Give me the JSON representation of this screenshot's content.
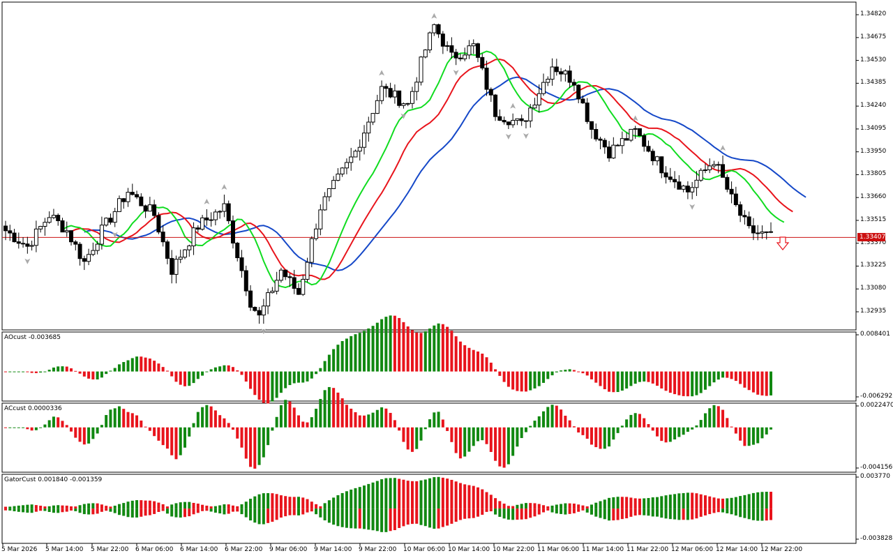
{
  "chart_data": [
    {
      "type": "candlestick",
      "panel": "price",
      "ylim": [
        1.3282,
        1.349
      ],
      "price_axis_ticks": [
        "1.34820",
        "1.34675",
        "1.34530",
        "1.34385",
        "1.34240",
        "1.34095",
        "1.33950",
        "1.33805",
        "1.33660",
        "1.33515",
        "1.33370",
        "1.33225",
        "1.33080",
        "1.32935"
      ],
      "current_price_label": "1.33407",
      "current_price": 1.33407,
      "time_labels": [
        "5 Mar 2026",
        "5 Mar 14:00",
        "5 Mar 22:00",
        "6 Mar 06:00",
        "6 Mar 14:00",
        "6 Mar 22:00",
        "9 Mar 06:00",
        "9 Mar 14:00",
        "9 Mar 22:00",
        "10 Mar 06:00",
        "10 Mar 14:00",
        "10 Mar 22:00",
        "11 Mar 06:00",
        "11 Mar 14:00",
        "11 Mar 22:00",
        "12 Mar 06:00",
        "12 Mar 14:00",
        "12 Mar 22:00"
      ],
      "series": [
        {
          "name": "",
          "line_color": "#1548c8",
          "role": "jaw"
        },
        {
          "name": "",
          "line_color": "#e8141c",
          "role": "teeth"
        },
        {
          "name": "",
          "line_color": "#10dc20",
          "role": "lips"
        }
      ],
      "signal_arrow": {
        "direction": "down",
        "color": "#e8141c"
      }
    },
    {
      "type": "histogram",
      "panel": "ao",
      "label": "AOcust -0.003685",
      "ylim": [
        -0.006292,
        0.008401
      ],
      "axis_ticks": [
        "0.008401",
        "-0.006292"
      ],
      "colors": {
        "up": "#118811",
        "down": "#e8141c"
      }
    },
    {
      "type": "histogram",
      "panel": "ac",
      "label": "ACcust 0.0000336",
      "ylim": [
        -0.0041569,
        0.002247
      ],
      "axis_ticks": [
        "0.0022470",
        "-0.0041569"
      ],
      "colors": {
        "up": "#118811",
        "down": "#e8141c"
      }
    },
    {
      "type": "histogram",
      "panel": "gator",
      "label": "GatorCust 0.001840 -0.001359",
      "ylim": [
        -0.003828,
        0.00377
      ],
      "axis_ticks": [
        "0.003770",
        "-0.003828"
      ],
      "colors": {
        "up": "#118811",
        "down": "#e8141c"
      }
    }
  ]
}
